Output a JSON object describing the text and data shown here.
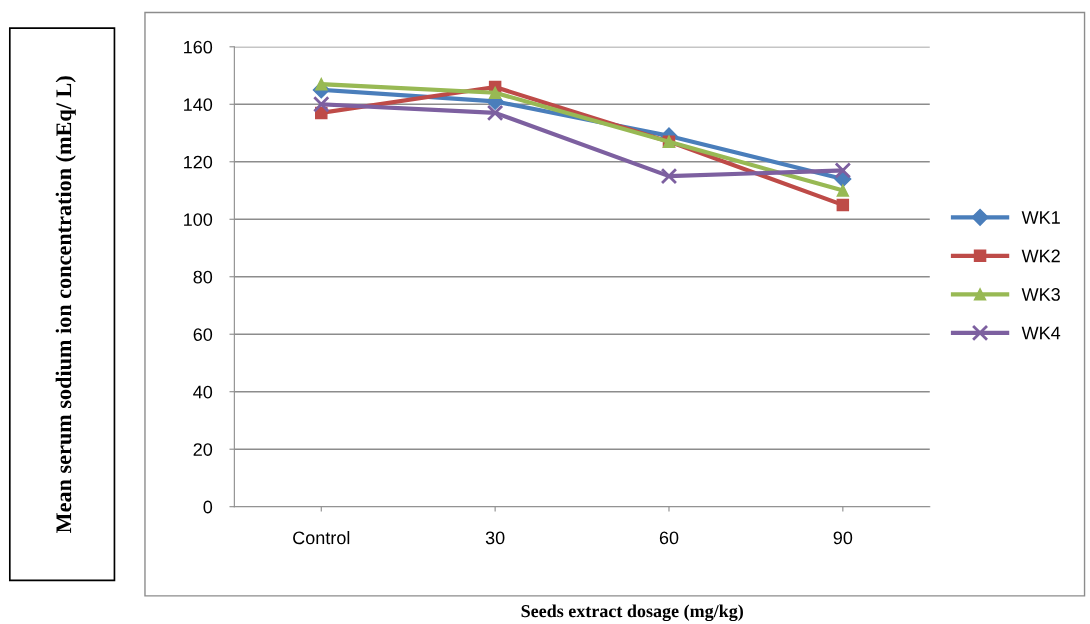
{
  "chart_data": {
    "type": "line",
    "xlabel": "Seeds extract dosage (mg/kg)",
    "ylabel": "Mean serum sodium ion concentration (mEq/ L)",
    "categories": [
      "Control",
      "30",
      "60",
      "90"
    ],
    "series": [
      {
        "name": "WK1",
        "color": "#4a7ebb",
        "marker": "diamond",
        "values": [
          145,
          141,
          129,
          114
        ]
      },
      {
        "name": "WK2",
        "color": "#be4b48",
        "marker": "square",
        "values": [
          137,
          146,
          127,
          105
        ]
      },
      {
        "name": "WK3",
        "color": "#98b954",
        "marker": "triangle",
        "values": [
          147,
          144,
          127,
          110
        ]
      },
      {
        "name": "WK4",
        "color": "#7d60a0",
        "marker": "cross",
        "values": [
          140,
          137,
          115,
          117
        ]
      }
    ],
    "ylim": [
      0,
      160
    ],
    "yticks": [
      0,
      20,
      40,
      60,
      80,
      100,
      120,
      140,
      160
    ],
    "grid": "y",
    "legend": "right",
    "line_style": "solid"
  }
}
